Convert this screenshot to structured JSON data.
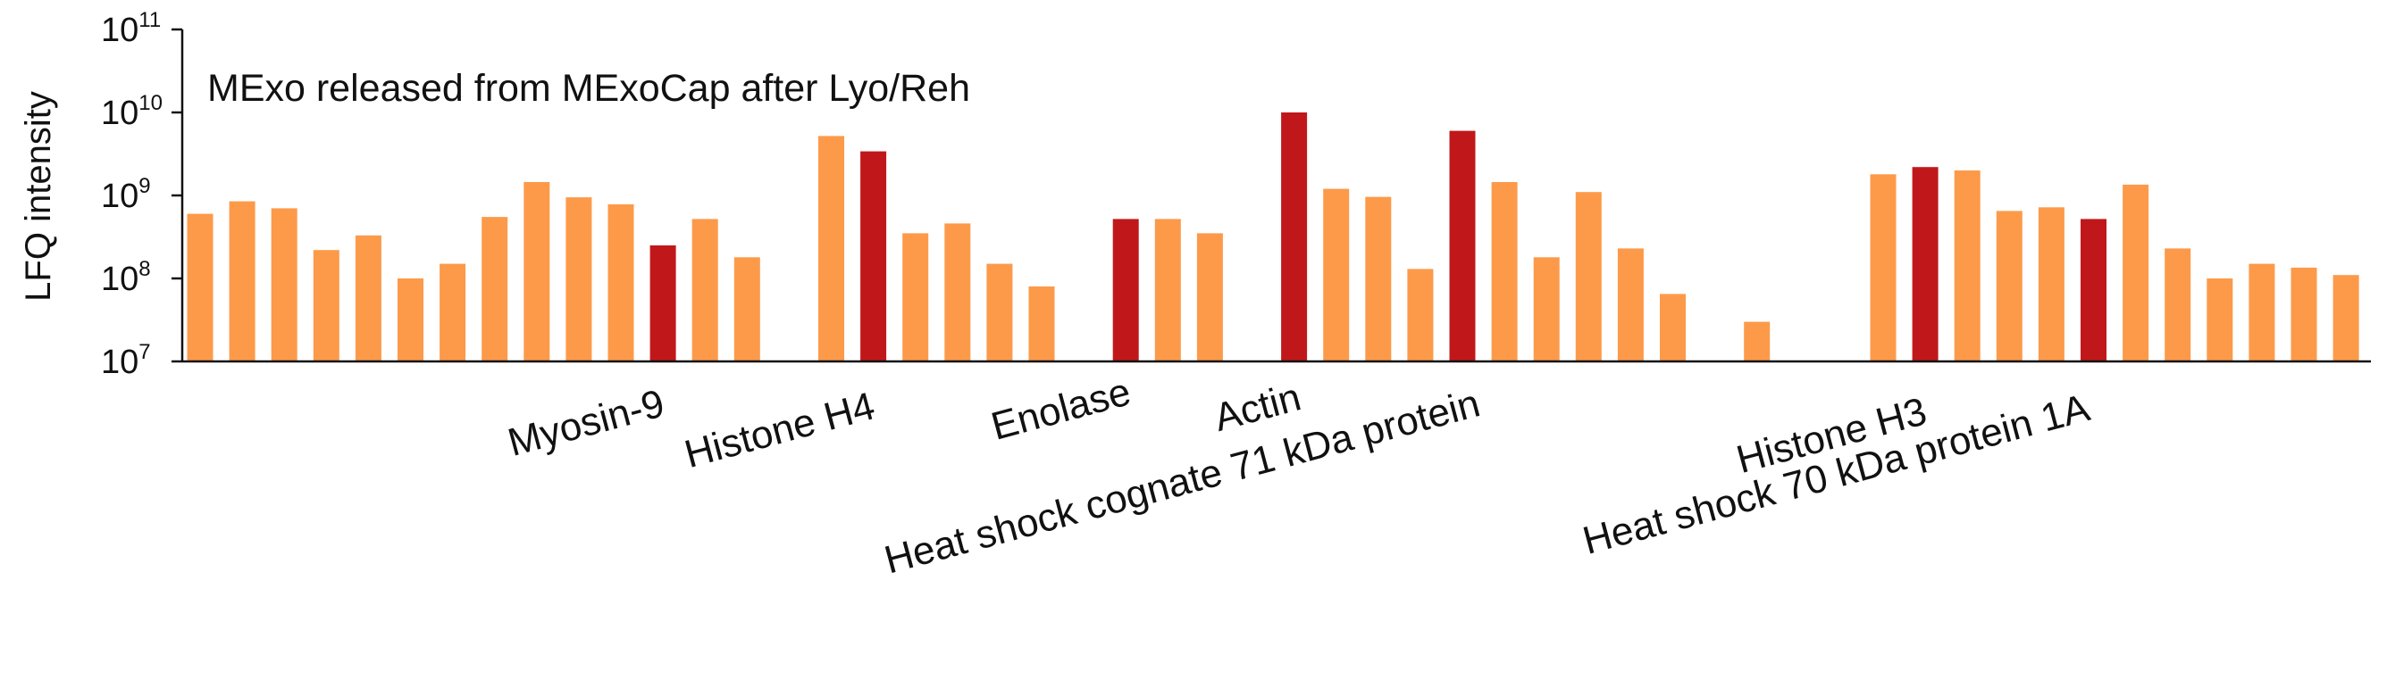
{
  "chart_data": {
    "type": "bar",
    "title": "",
    "annotation": "MExo released from MExoCap after Lyo/Reh",
    "ylabel": "LFQ intensity",
    "xlabel": "",
    "yscale": "log",
    "ylim": [
      10000000,
      100000000000
    ],
    "yticks": [
      {
        "base": "10",
        "exp": "7",
        "value": 10000000
      },
      {
        "base": "10",
        "exp": "8",
        "value": 100000000
      },
      {
        "base": "10",
        "exp": "9",
        "value": 1000000000
      },
      {
        "base": "10",
        "exp": "10",
        "value": 10000000000
      },
      {
        "base": "10",
        "exp": "11",
        "value": 100000000000
      }
    ],
    "bars": [
      {
        "value": 600000000,
        "highlight": false
      },
      {
        "value": 850000000,
        "highlight": false
      },
      {
        "value": 700000000,
        "highlight": false
      },
      {
        "value": 220000000,
        "highlight": false
      },
      {
        "value": 330000000,
        "highlight": false
      },
      {
        "value": 100000000,
        "highlight": false
      },
      {
        "value": 150000000,
        "highlight": false
      },
      {
        "value": 550000000,
        "highlight": false
      },
      {
        "value": 1450000000,
        "highlight": false
      },
      {
        "value": 950000000,
        "highlight": false
      },
      {
        "value": 780000000,
        "highlight": false
      },
      {
        "value": 250000000,
        "highlight": true
      },
      {
        "value": 520000000,
        "highlight": false
      },
      {
        "value": 180000000,
        "highlight": false
      },
      {
        "value": null,
        "highlight": false
      },
      {
        "value": 5200000000,
        "highlight": false
      },
      {
        "value": 3400000000,
        "highlight": true
      },
      {
        "value": 350000000,
        "highlight": false
      },
      {
        "value": 460000000,
        "highlight": false
      },
      {
        "value": 150000000,
        "highlight": false
      },
      {
        "value": 80000000,
        "highlight": false
      },
      {
        "value": null,
        "highlight": false
      },
      {
        "value": 520000000,
        "highlight": true
      },
      {
        "value": 520000000,
        "highlight": false
      },
      {
        "value": 350000000,
        "highlight": false
      },
      {
        "value": null,
        "highlight": false
      },
      {
        "value": 10000000000,
        "highlight": true
      },
      {
        "value": 1200000000,
        "highlight": false
      },
      {
        "value": 960000000,
        "highlight": false
      },
      {
        "value": 130000000,
        "highlight": false
      },
      {
        "value": 6000000000,
        "highlight": true
      },
      {
        "value": 1450000000,
        "highlight": false
      },
      {
        "value": 180000000,
        "highlight": false
      },
      {
        "value": 1100000000,
        "highlight": false
      },
      {
        "value": 230000000,
        "highlight": false
      },
      {
        "value": 65000000,
        "highlight": false
      },
      {
        "value": null,
        "highlight": false
      },
      {
        "value": 30000000,
        "highlight": false
      },
      {
        "value": null,
        "highlight": false
      },
      {
        "value": null,
        "highlight": false
      },
      {
        "value": 1800000000,
        "highlight": false
      },
      {
        "value": 2200000000,
        "highlight": true
      },
      {
        "value": 2000000000,
        "highlight": false
      },
      {
        "value": 650000000,
        "highlight": false
      },
      {
        "value": 720000000,
        "highlight": false
      },
      {
        "value": 520000000,
        "highlight": true
      },
      {
        "value": 1350000000,
        "highlight": false
      },
      {
        "value": 230000000,
        "highlight": false
      },
      {
        "value": 100000000,
        "highlight": false
      },
      {
        "value": 150000000,
        "highlight": false
      },
      {
        "value": 135000000,
        "highlight": false
      },
      {
        "value": 110000000,
        "highlight": false
      }
    ],
    "labeled_bars": [
      {
        "label": "Myosin-9",
        "bar_index": 11
      },
      {
        "label": "Histone H4",
        "bar_index": 16
      },
      {
        "label": "Enolase",
        "bar_index": 22
      },
      {
        "label": "Actin",
        "bar_index": 26
      },
      {
        "label": "Heat shock cognate 71 kDa protein",
        "bar_index": 30
      },
      {
        "label": "Histone H3",
        "bar_index": 41
      },
      {
        "label": "Heat shock 70 kDa protein 1A",
        "bar_index": 45
      }
    ],
    "colors": {
      "default": "#FC9A4A",
      "highlight": "#C0181A",
      "axis": "#111111"
    }
  }
}
